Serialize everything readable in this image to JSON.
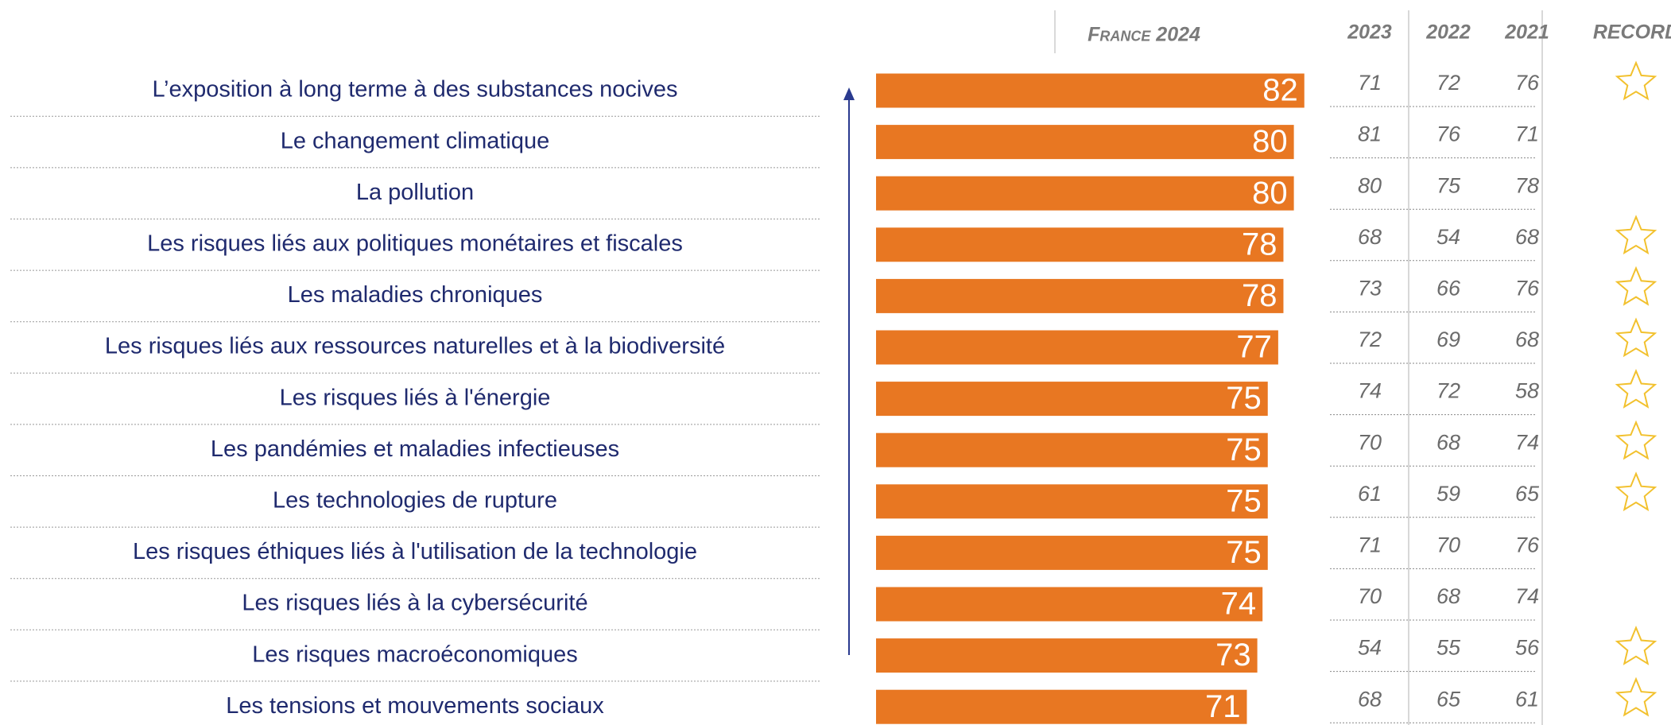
{
  "chart_data": {
    "type": "bar",
    "orientation": "horizontal",
    "header": "France 2024",
    "color": "#e87722",
    "xlim": [
      0,
      100
    ],
    "categories": [
      "L’exposition à long terme à des substances nocives",
      "Le changement climatique",
      "La pollution",
      "Les risques liés aux politiques monétaires et fiscales",
      "Les maladies chroniques",
      "Les risques liés aux ressources naturelles et à la biodiversité",
      "Les risques liés à l'énergie",
      "Les pandémies et maladies infectieuses",
      "Les technologies de rupture",
      "Les risques éthiques liés à l'utilisation de la technologie",
      "Les risques liés à la cybersécurité",
      "Les risques macroéconomiques",
      "Les tensions et mouvements sociaux"
    ],
    "values": [
      82,
      80,
      80,
      78,
      78,
      77,
      75,
      75,
      75,
      75,
      74,
      73,
      71
    ],
    "table": {
      "columns": [
        "2023",
        "2022",
        "2021"
      ],
      "rows": [
        [
          71,
          72,
          76
        ],
        [
          81,
          76,
          71
        ],
        [
          80,
          75,
          78
        ],
        [
          68,
          54,
          68
        ],
        [
          73,
          66,
          76
        ],
        [
          72,
          69,
          68
        ],
        [
          74,
          72,
          58
        ],
        [
          70,
          68,
          74
        ],
        [
          61,
          59,
          65
        ],
        [
          71,
          70,
          76
        ],
        [
          70,
          68,
          74
        ],
        [
          54,
          55,
          56
        ],
        [
          68,
          65,
          61
        ]
      ]
    },
    "record_header": "RECORD",
    "record": [
      true,
      false,
      false,
      true,
      true,
      true,
      true,
      true,
      true,
      false,
      false,
      true,
      true
    ],
    "record_color": "#f2c12e"
  }
}
